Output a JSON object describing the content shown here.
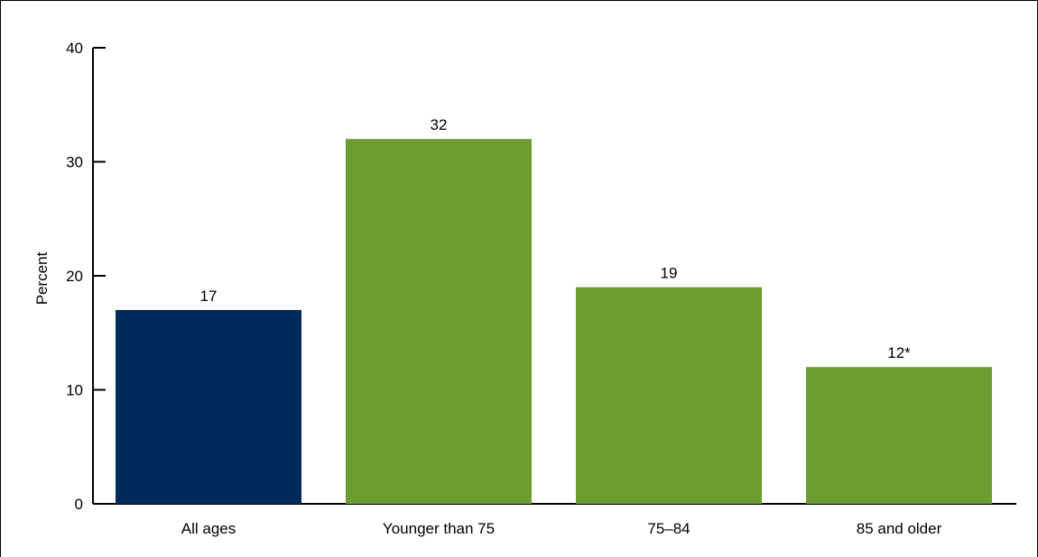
{
  "chart_data": {
    "type": "bar",
    "title": "",
    "xlabel": "",
    "ylabel": "Percent",
    "ylim": [
      0,
      40
    ],
    "yticks": [
      0,
      10,
      20,
      30,
      40
    ],
    "grid": false,
    "categories": [
      "All ages",
      "Younger than 75",
      "75–84",
      "85 and older"
    ],
    "values": [
      17,
      32,
      19,
      12
    ],
    "data_labels": [
      "17",
      "32",
      "19",
      "12*"
    ],
    "colors": [
      "#002a5c",
      "#6d9d31",
      "#6d9d31",
      "#6d9d31"
    ]
  }
}
